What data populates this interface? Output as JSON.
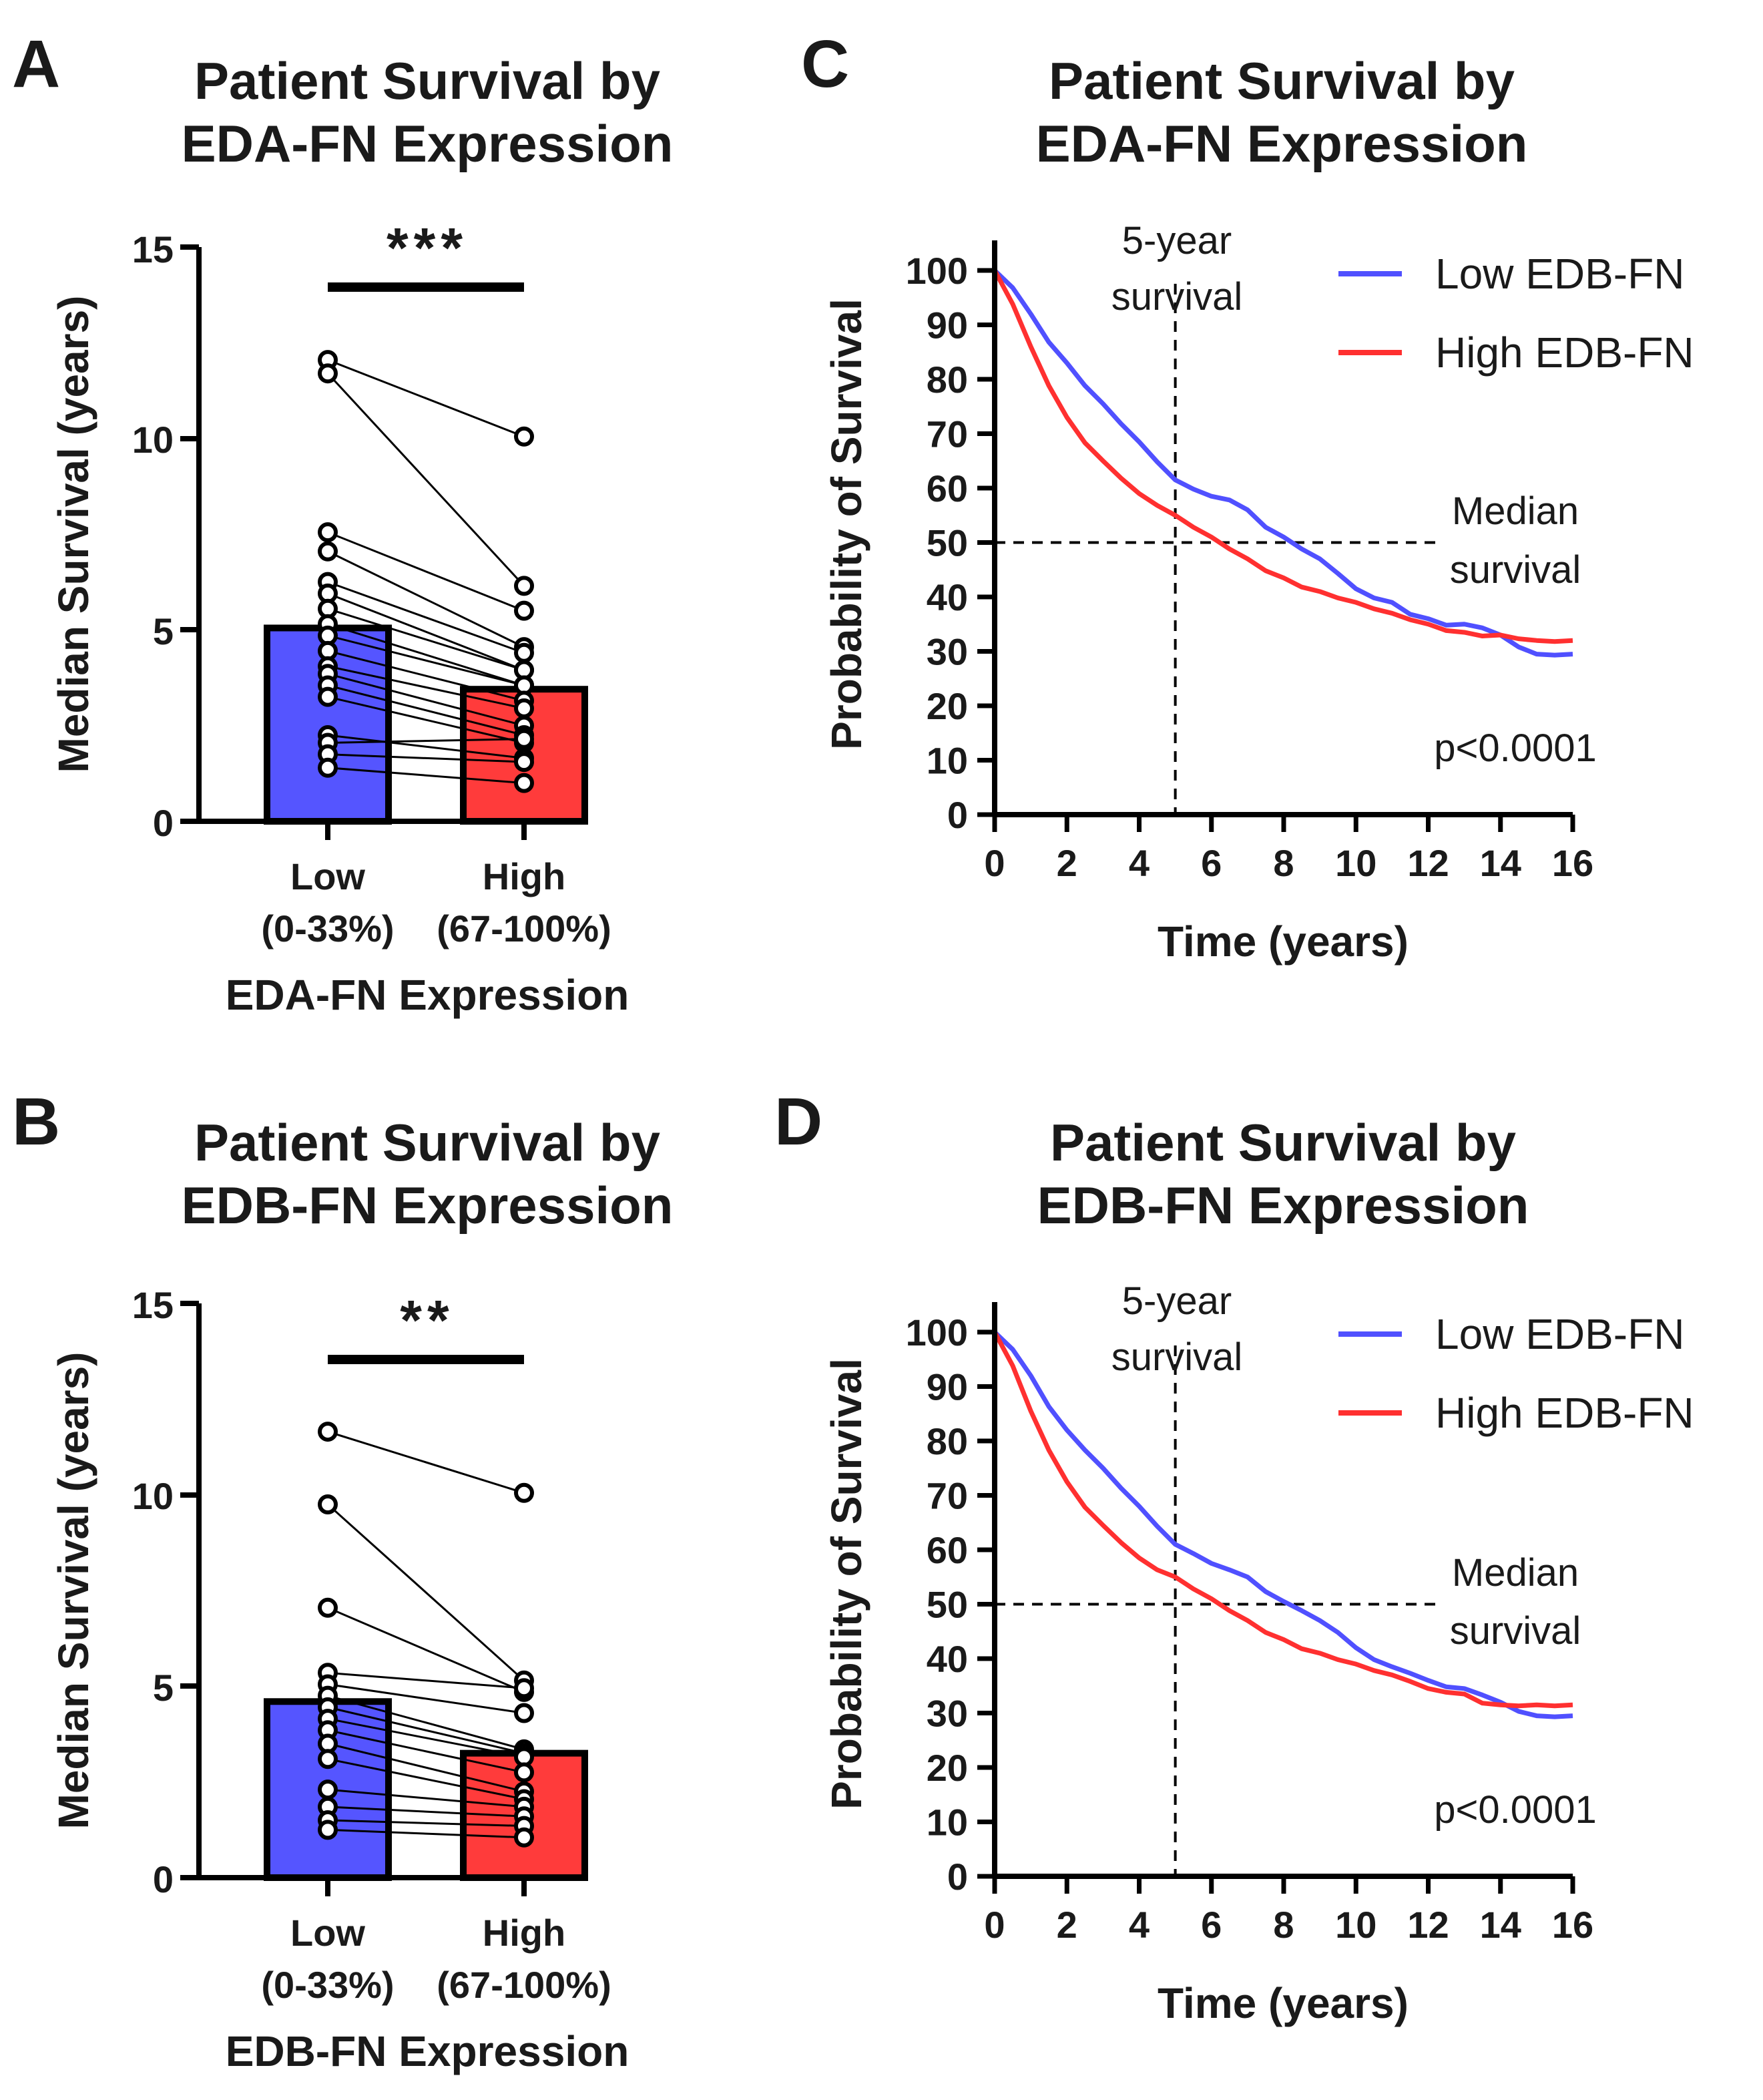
{
  "chart_data": [
    {
      "panel": "A",
      "type": "bar",
      "title_line1": "Patient Survival by",
      "title_line2": "EDA-FN Expression",
      "ylabel": "Median Survival (years)",
      "xlabel": "EDA-FN Expression",
      "ylim": [
        0,
        15
      ],
      "yticks": [
        "0",
        "5",
        "10",
        "15"
      ],
      "categories": [
        {
          "line1": "Low",
          "line2": "(0-33%)"
        },
        {
          "line1": "High",
          "line2": "(67-100%)"
        }
      ],
      "values": [
        5.05,
        3.45
      ],
      "colors": [
        "#5555ff",
        "#ff3b3b"
      ],
      "significance": "***",
      "pairs": [
        [
          12.05,
          10.05
        ],
        [
          11.7,
          6.15
        ],
        [
          7.55,
          5.5
        ],
        [
          7.05,
          4.55
        ],
        [
          6.25,
          4.4
        ],
        [
          5.95,
          3.95
        ],
        [
          5.55,
          3.95
        ],
        [
          5.15,
          3.55
        ],
        [
          4.85,
          3.55
        ],
        [
          4.45,
          3.15
        ],
        [
          4.05,
          2.95
        ],
        [
          3.85,
          2.5
        ],
        [
          3.55,
          2.25
        ],
        [
          3.25,
          2.05
        ],
        [
          2.25,
          1.65
        ],
        [
          2.05,
          2.15
        ],
        [
          1.75,
          1.55
        ],
        [
          1.4,
          1.0
        ]
      ]
    },
    {
      "panel": "B",
      "type": "bar",
      "title_line1": "Patient Survival by",
      "title_line2": "EDB-FN Expression",
      "ylabel": "Median Survival (years)",
      "xlabel": "EDB-FN Expression",
      "ylim": [
        0,
        15
      ],
      "yticks": [
        "0",
        "5",
        "10",
        "15"
      ],
      "categories": [
        {
          "line1": "Low",
          "line2": "(0-33%)"
        },
        {
          "line1": "High",
          "line2": "(67-100%)"
        }
      ],
      "values": [
        4.6,
        3.25
      ],
      "colors": [
        "#5555ff",
        "#ff3b3b"
      ],
      "significance": "**",
      "pairs": [
        [
          11.65,
          10.05
        ],
        [
          9.75,
          5.15
        ],
        [
          7.05,
          4.85
        ],
        [
          5.35,
          4.95
        ],
        [
          5.05,
          4.3
        ],
        [
          4.75,
          3.35
        ],
        [
          4.45,
          3.25
        ],
        [
          4.15,
          3.15
        ],
        [
          3.85,
          2.75
        ],
        [
          3.5,
          2.25
        ],
        [
          3.1,
          2.05
        ],
        [
          2.3,
          1.85
        ],
        [
          1.85,
          1.6
        ],
        [
          1.5,
          1.35
        ],
        [
          1.25,
          1.05
        ]
      ]
    },
    {
      "panel": "C",
      "type": "line",
      "title_line1": "Patient Survival by",
      "title_line2": "EDA-FN Expression",
      "ylabel": "Probability of Survival",
      "xlabel": "Time (years)",
      "xlim": [
        0,
        16
      ],
      "ylim": [
        0,
        100
      ],
      "xticks": [
        "0",
        "2",
        "4",
        "6",
        "8",
        "10",
        "12",
        "14",
        "16"
      ],
      "yticks": [
        "0",
        "10",
        "20",
        "30",
        "40",
        "50",
        "60",
        "70",
        "80",
        "90",
        "100"
      ],
      "annotation_5yr_line1": "5-year",
      "annotation_5yr_line2": "survival",
      "annotation_median_line1": "Median",
      "annotation_median_line2": "survival",
      "pvalue": "p<0.0001",
      "reference_x": 5,
      "reference_y": 50,
      "series": [
        {
          "name": "Low EDB-FN",
          "color": "#5050ff",
          "x": [
            0,
            0.5,
            1,
            1.5,
            2,
            2.5,
            3,
            3.5,
            4,
            4.5,
            5,
            5.5,
            6,
            6.5,
            7,
            7.5,
            8,
            8.5,
            9,
            9.5,
            10,
            10.5,
            11,
            11.5,
            12,
            12.5,
            13,
            13.5,
            14,
            14.5,
            15,
            15.5,
            16
          ],
          "y": [
            100,
            97,
            92,
            87,
            83,
            79,
            75.5,
            72,
            68.5,
            65,
            61.5,
            60,
            58.5,
            58,
            56,
            53,
            51,
            49,
            47,
            44.5,
            41.5,
            40,
            39,
            37,
            36,
            35,
            35,
            34.5,
            33,
            31,
            29.5,
            29.5,
            29.5
          ]
        },
        {
          "name": "High EDB-FN",
          "color": "#ff3030",
          "x": [
            0,
            0.5,
            1,
            1.5,
            2,
            2.5,
            3,
            3.5,
            4,
            4.5,
            5,
            5.5,
            6,
            6.5,
            7,
            7.5,
            8,
            8.5,
            9,
            9.5,
            10,
            10.5,
            11,
            11.5,
            12,
            12.5,
            13,
            13.5,
            14,
            14.5,
            15,
            15.5,
            16
          ],
          "y": [
            100,
            94,
            86,
            79,
            73,
            68.5,
            65,
            62,
            59,
            57,
            55,
            53,
            51,
            49,
            47,
            45,
            43.5,
            42,
            41,
            40,
            39,
            38,
            37,
            36,
            35,
            34,
            33.5,
            33,
            33,
            32.5,
            32,
            32,
            32
          ]
        }
      ]
    },
    {
      "panel": "D",
      "type": "line",
      "title_line1": "Patient Survival by",
      "title_line2": "EDB-FN Expression",
      "ylabel": "Probability of Survival",
      "xlabel": "Time (years)",
      "xlim": [
        0,
        16
      ],
      "ylim": [
        0,
        100
      ],
      "xticks": [
        "0",
        "2",
        "4",
        "6",
        "8",
        "10",
        "12",
        "14",
        "16"
      ],
      "yticks": [
        "0",
        "10",
        "20",
        "30",
        "40",
        "50",
        "60",
        "70",
        "80",
        "90",
        "100"
      ],
      "annotation_5yr_line1": "5-year",
      "annotation_5yr_line2": "survival",
      "annotation_median_line1": "Median",
      "annotation_median_line2": "survival",
      "pvalue": "p<0.0001",
      "reference_x": 5,
      "reference_y": 50,
      "series": [
        {
          "name": "Low EDB-FN",
          "color": "#5050ff",
          "x": [
            0,
            0.5,
            1,
            1.5,
            2,
            2.5,
            3,
            3.5,
            4,
            4.5,
            5,
            5.5,
            6,
            6.5,
            7,
            7.5,
            8,
            8.5,
            9,
            9.5,
            10,
            10.5,
            11,
            11.5,
            12,
            12.5,
            13,
            13.5,
            14,
            14.5,
            15,
            15.5,
            16
          ],
          "y": [
            100,
            97,
            92,
            86.5,
            82,
            78.5,
            75,
            71.5,
            68,
            64.5,
            61,
            59.5,
            57.5,
            56.5,
            55,
            52.5,
            50.5,
            49,
            47,
            45,
            42,
            40,
            38.5,
            37.5,
            36,
            35,
            34.5,
            33.5,
            32,
            30.5,
            29.5,
            29.5,
            29.5
          ]
        },
        {
          "name": "High EDB-FN",
          "color": "#ff3030",
          "x": [
            0,
            0.5,
            1,
            1.5,
            2,
            2.5,
            3,
            3.5,
            4,
            4.5,
            5,
            5.5,
            6,
            6.5,
            7,
            7.5,
            8,
            8.5,
            9,
            9.5,
            10,
            10.5,
            11,
            11.5,
            12,
            12.5,
            13,
            13.5,
            14,
            14.5,
            15,
            15.5,
            16
          ],
          "y": [
            100,
            94,
            85.5,
            78.5,
            72.5,
            68,
            64.5,
            61.5,
            58.5,
            56.5,
            55,
            53,
            51,
            49,
            47,
            45,
            43.5,
            42,
            41,
            40,
            39,
            38,
            37,
            36,
            34.5,
            34,
            33.5,
            32,
            31.5,
            31.5,
            31.5,
            31.5,
            31.5
          ]
        }
      ]
    }
  ]
}
